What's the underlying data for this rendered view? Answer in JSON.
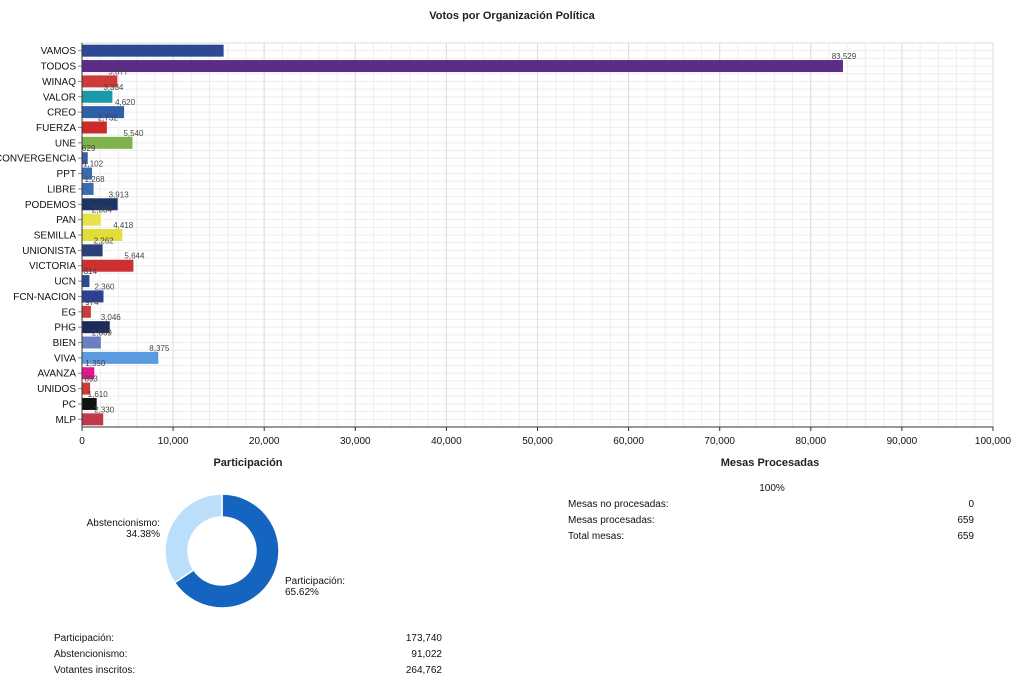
{
  "chart_data": [
    {
      "type": "bar",
      "orientation": "horizontal",
      "title": "Votos por Organización Política",
      "categories": [
        "VAMOS",
        "TODOS",
        "WINAQ",
        "VALOR",
        "CREO",
        "FUERZA",
        "UNE",
        "CONVERGENCIA",
        "PPT",
        "LIBRE",
        "PODEMOS",
        "PAN",
        "SEMILLA",
        "UNIONISTA",
        "VICTORIA",
        "UCN",
        "FCN-NACION",
        "EG",
        "PHG",
        "BIEN",
        "VIVA",
        "AVANZA",
        "UNIDOS",
        "PC",
        "MLP"
      ],
      "values": [
        15546,
        83529,
        3877,
        3334,
        4620,
        2732,
        5540,
        629,
        1102,
        1268,
        3913,
        2064,
        4418,
        2262,
        5644,
        814,
        2360,
        974,
        3046,
        2069,
        8375,
        1350,
        893,
        1610,
        2330
      ],
      "data_labels": [
        "",
        "83,529",
        "3,877",
        "3,334",
        "4,620",
        "2,732",
        "5,540",
        "629",
        "1,102",
        "1,268",
        "3,913",
        "2,064",
        "4,418",
        "2,262",
        "5,644",
        "814",
        "2,360",
        "974",
        "3,046",
        "2,069",
        "8,375",
        "1,350",
        "893",
        "1,610",
        "2,330"
      ],
      "colors": [
        "#2b4a93",
        "#5b2d86",
        "#cc3a3a",
        "#1a9aa8",
        "#2f5fa8",
        "#cc2b2b",
        "#7fb24a",
        "#3a5f9e",
        "#3a6db0",
        "#3a6db0",
        "#1d3563",
        "#e8e24a",
        "#e3dd3a",
        "#2b3f7a",
        "#cc3030",
        "#2b4a93",
        "#2b3f93",
        "#cc3a3a",
        "#1d2a5a",
        "#6b7fc0",
        "#5a9be0",
        "#e01a8a",
        "#cc3a3a",
        "#111111",
        "#c03a4a"
      ],
      "xlim": [
        0,
        100000
      ],
      "x_ticks": [
        "0",
        "10,000",
        "20,000",
        "30,000",
        "40,000",
        "50,000",
        "60,000",
        "70,000",
        "80,000",
        "90,000",
        "100,000"
      ],
      "grid": true
    },
    {
      "type": "pie",
      "title": "Participación",
      "categories": [
        "Participación:",
        "Abstencionismo:"
      ],
      "values": [
        65.62,
        34.38
      ],
      "value_labels": [
        "65.62%",
        "34.38%"
      ],
      "colors": [
        "#1565c0",
        "#bbdefb"
      ]
    }
  ],
  "participation": {
    "title": "Participación",
    "rows": [
      {
        "label": "Participación:",
        "value": "173,740"
      },
      {
        "label": "Abstencionismo:",
        "value": "91,022"
      },
      {
        "label": "Votantes inscritos:",
        "value": "264,762"
      }
    ]
  },
  "mesas": {
    "title": "Mesas Procesadas",
    "percent": "100%",
    "rows": [
      {
        "label": "Mesas no procesadas:",
        "value": "0"
      },
      {
        "label": "Mesas procesadas:",
        "value": "659"
      },
      {
        "label": "Total mesas:",
        "value": "659"
      }
    ]
  }
}
